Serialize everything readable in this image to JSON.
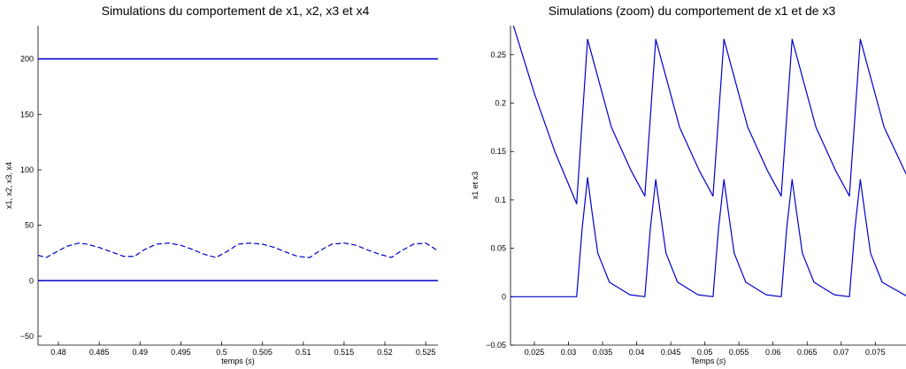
{
  "chart_data": [
    {
      "type": "line",
      "title": "Simulations du comportement de x1, x2, x3 et x4",
      "xlabel": "temps (s)",
      "ylabel": "x1, x2, x3, x4",
      "xlim": [
        0.4775,
        0.5265
      ],
      "ylim": [
        -58,
        230
      ],
      "xticks": [
        "0.48",
        "0.485",
        "0.49",
        "0.495",
        "0.5",
        "0.505",
        "0.51",
        "0.515",
        "0.52",
        "0.525"
      ],
      "yticks": [
        "−50",
        "0",
        "50",
        "100",
        "150",
        "200"
      ],
      "grid": false,
      "series": [
        {
          "style": "solid",
          "x": [
            0.4775,
            0.485,
            0.49,
            0.495,
            0.5,
            0.505,
            0.51,
            0.515,
            0.52,
            0.5265
          ],
          "values": [
            200,
            200,
            200,
            200,
            200,
            200,
            200,
            200,
            200,
            200
          ]
        },
        {
          "style": "dashed",
          "x": [
            0.4775,
            0.4785,
            0.4795,
            0.481,
            0.4825,
            0.4835,
            0.485,
            0.4865,
            0.488,
            0.4893,
            0.4905,
            0.492,
            0.4935,
            0.495,
            0.4965,
            0.4978,
            0.4993,
            0.5008,
            0.502,
            0.5035,
            0.505,
            0.5065,
            0.5078,
            0.5093,
            0.5108,
            0.512,
            0.5135,
            0.515,
            0.5165,
            0.5178,
            0.5193,
            0.5208,
            0.522,
            0.5235,
            0.525,
            0.5265
          ],
          "values": [
            23,
            21,
            25,
            31,
            34,
            33,
            30,
            26,
            22,
            22,
            28,
            33,
            34,
            32,
            28,
            24,
            21,
            27,
            33,
            34,
            33,
            30,
            26,
            22,
            21,
            27,
            33,
            34,
            32,
            28,
            24,
            21,
            27,
            33,
            34,
            27
          ]
        },
        {
          "style": "solid",
          "x": [
            0.4775,
            0.5265
          ],
          "values": [
            0.3,
            0.3
          ]
        },
        {
          "style": "solid",
          "x": [
            0.4775,
            0.5265
          ],
          "values": [
            0,
            0
          ]
        }
      ]
    },
    {
      "type": "line",
      "title": "Simulations (zoom) du comportement de x1 et de x3",
      "xlabel": "Temps (s)",
      "ylabel": "x1 et x3",
      "xlim": [
        0.0215,
        0.0795
      ],
      "ylim": [
        -0.05,
        0.28
      ],
      "xticks": [
        "0.025",
        "0.03",
        "0.035",
        "0.04",
        "0.045",
        "0.05",
        "0.055",
        "0.06",
        "0.065",
        "0.07",
        "0.075"
      ],
      "yticks": [
        "−0.05",
        "0",
        "0.05",
        "0.1",
        "0.15",
        "0.2",
        "0.25"
      ],
      "grid": false,
      "series": [
        {
          "style": "solid",
          "x": [
            0.0218,
            0.025,
            0.028,
            0.0312,
            0.0328,
            0.0363,
            0.0392,
            0.0412,
            0.0428,
            0.0463,
            0.0492,
            0.0512,
            0.0528,
            0.0563,
            0.0592,
            0.0612,
            0.0628,
            0.0663,
            0.0692,
            0.0712,
            0.0728,
            0.0763,
            0.0795
          ],
          "values": [
            0.283,
            0.21,
            0.15,
            0.096,
            0.266,
            0.175,
            0.13,
            0.104,
            0.266,
            0.175,
            0.13,
            0.104,
            0.266,
            0.175,
            0.13,
            0.104,
            0.266,
            0.175,
            0.13,
            0.104,
            0.266,
            0.175,
            0.127
          ]
        },
        {
          "style": "solid",
          "x": [
            0.0215,
            0.0312,
            0.032,
            0.0328,
            0.0335,
            0.0343,
            0.036,
            0.039,
            0.0412,
            0.042,
            0.0428,
            0.0435,
            0.0443,
            0.046,
            0.049,
            0.0512,
            0.052,
            0.0528,
            0.0535,
            0.0543,
            0.056,
            0.059,
            0.0612,
            0.062,
            0.0628,
            0.0635,
            0.0643,
            0.066,
            0.069,
            0.0712,
            0.072,
            0.0728,
            0.0735,
            0.0743,
            0.076,
            0.0795
          ],
          "values": [
            0,
            0,
            0.07,
            0.123,
            0.085,
            0.045,
            0.015,
            0.002,
            0,
            0.07,
            0.121,
            0.085,
            0.045,
            0.015,
            0.002,
            0,
            0.07,
            0.121,
            0.085,
            0.045,
            0.015,
            0.002,
            0,
            0.07,
            0.121,
            0.085,
            0.045,
            0.015,
            0.002,
            0,
            0.07,
            0.121,
            0.085,
            0.045,
            0.015,
            0.001
          ]
        }
      ]
    }
  ]
}
